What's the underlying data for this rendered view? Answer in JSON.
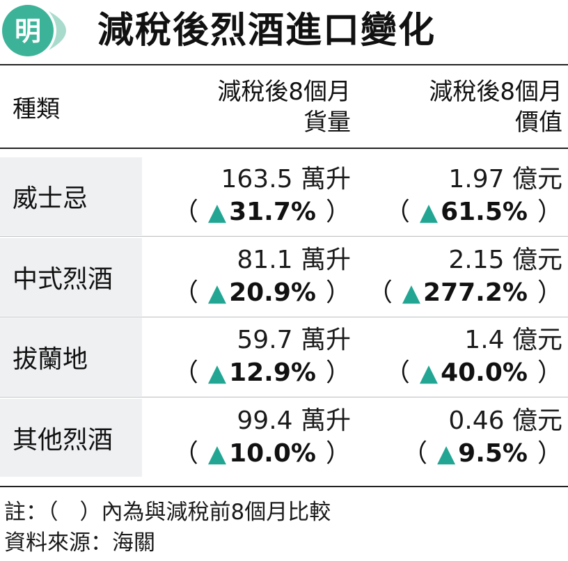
{
  "logo": {
    "glyph": "明",
    "color": "#3cb398",
    "light_color": "#a9dbcc"
  },
  "title": "減稅後烈酒進口變化",
  "headers": {
    "type": "種類",
    "volume_line1": "減稅後8個月",
    "volume_line2": "貨量",
    "value_line1": "減稅後8個月",
    "value_line2": "價值"
  },
  "rows": [
    {
      "name": "威士忌",
      "volume": "163.5 萬升",
      "volume_change": "31.7%",
      "value": "1.97 億元",
      "value_change": "61.5%"
    },
    {
      "name": "中式烈酒",
      "volume": "81.1 萬升",
      "volume_change": "20.9%",
      "value": "2.15 億元",
      "value_change": "277.2%"
    },
    {
      "name": "拔蘭地",
      "volume": "59.7 萬升",
      "volume_change": "12.9%",
      "value": "1.4 億元",
      "value_change": "40.0%"
    },
    {
      "name": "其他烈酒",
      "volume": "99.4 萬升",
      "volume_change": "10.0%",
      "value": "0.46 億元",
      "value_change": "9.5%"
    }
  ],
  "symbols": {
    "open_paren": "（",
    "close_paren": "）",
    "up_triangle": "▲"
  },
  "notes": {
    "note": "註：（　）內為與減稅前8個月比較",
    "source": "資料來源：海關"
  },
  "colors": {
    "accent": "#22a693",
    "row_label_bg": "#eef0f2"
  }
}
